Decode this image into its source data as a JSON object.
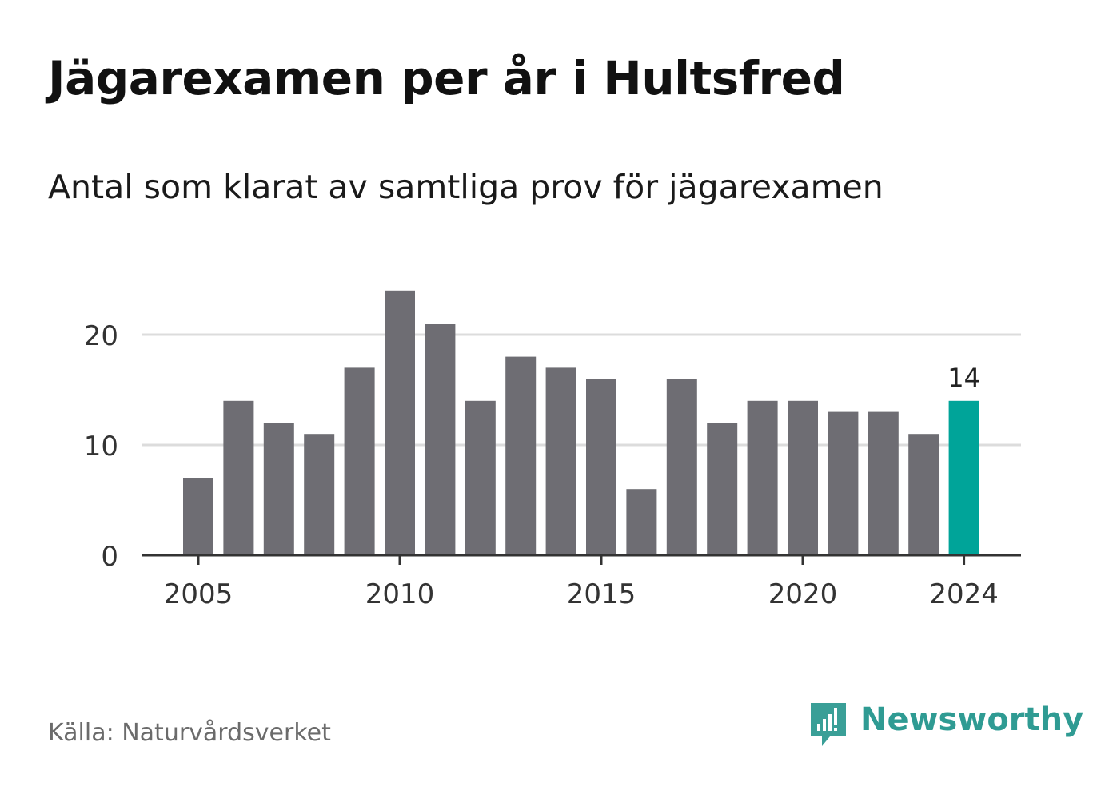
{
  "title": "Jägarexamen per år i Hultsfred",
  "subtitle": "Antal som klarat av samtliga prov för jägarexamen",
  "source": "Källa: Naturvårdsverket",
  "brand": {
    "name": "Newsworthy",
    "icon": "newsworthy-logo-icon",
    "color": "#2f9b93"
  },
  "colors": {
    "bar": "#6e6d73",
    "highlight": "#00a499",
    "grid": "#dcdcdc",
    "axis": "#333333"
  },
  "chart_data": {
    "type": "bar",
    "title": "Jägarexamen per år i Hultsfred",
    "subtitle": "Antal som klarat av samtliga prov för jägarexamen",
    "xlabel": "",
    "ylabel": "",
    "categories": [
      2005,
      2006,
      2007,
      2008,
      2009,
      2010,
      2011,
      2012,
      2013,
      2014,
      2015,
      2016,
      2017,
      2018,
      2019,
      2020,
      2021,
      2022,
      2023,
      2024
    ],
    "values": [
      7,
      14,
      12,
      11,
      17,
      24,
      21,
      14,
      18,
      17,
      16,
      6,
      16,
      12,
      14,
      14,
      13,
      13,
      11,
      14
    ],
    "ylim": [
      0,
      26
    ],
    "y_ticks": [
      0,
      10,
      20
    ],
    "x_ticks": [
      2005,
      2010,
      2015,
      2020,
      2024
    ],
    "grid": true,
    "highlight": {
      "category": 2024,
      "label": "14"
    }
  }
}
